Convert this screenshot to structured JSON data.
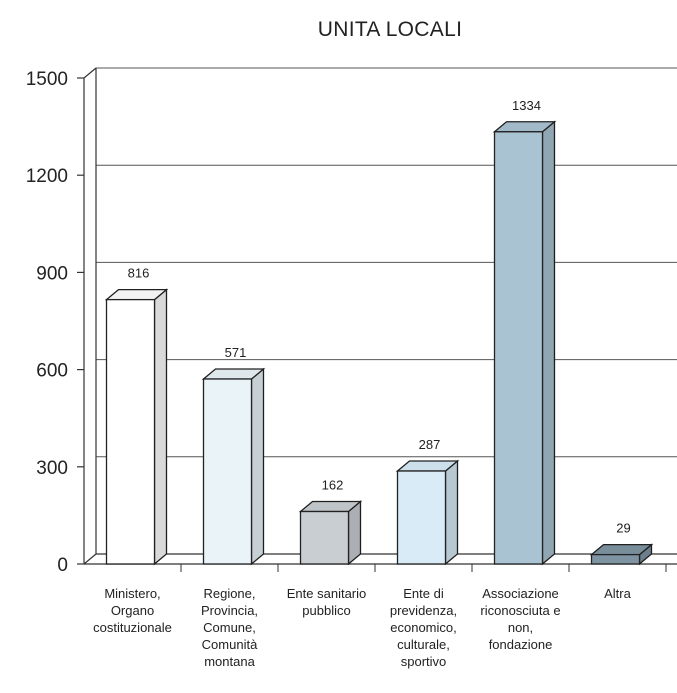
{
  "chart_data": {
    "type": "bar",
    "title": "UNITA LOCALI",
    "xlabel": "",
    "ylabel": "",
    "ylim": [
      0,
      1500
    ],
    "y_ticks": [
      "0",
      "300",
      "600",
      "900",
      "1200",
      "1500"
    ],
    "categories": [
      [
        "Ministero,",
        "Organo",
        "costituzionale"
      ],
      [
        "Regione,",
        "Provincia,",
        "Comune,",
        "Comunità",
        "montana"
      ],
      [
        "Ente sanitario",
        "pubblico"
      ],
      [
        "Ente di",
        "previdenza,",
        "economico,",
        "culturale,",
        "sportivo"
      ],
      [
        "Associazione",
        "riconosciuta e",
        "non,",
        "fondazione"
      ],
      [
        "Altra"
      ]
    ],
    "values": [
      816,
      571,
      162,
      287,
      1334,
      29
    ],
    "value_labels": [
      "816",
      "571",
      "162",
      "287",
      "1334",
      "29"
    ],
    "bar_colors": [
      "#ffffff",
      "#e9f3f8",
      "#c9ced2",
      "#d8ebf6",
      "#a9c3d3",
      "#7f94a3"
    ],
    "grid": true,
    "legend": "none"
  }
}
